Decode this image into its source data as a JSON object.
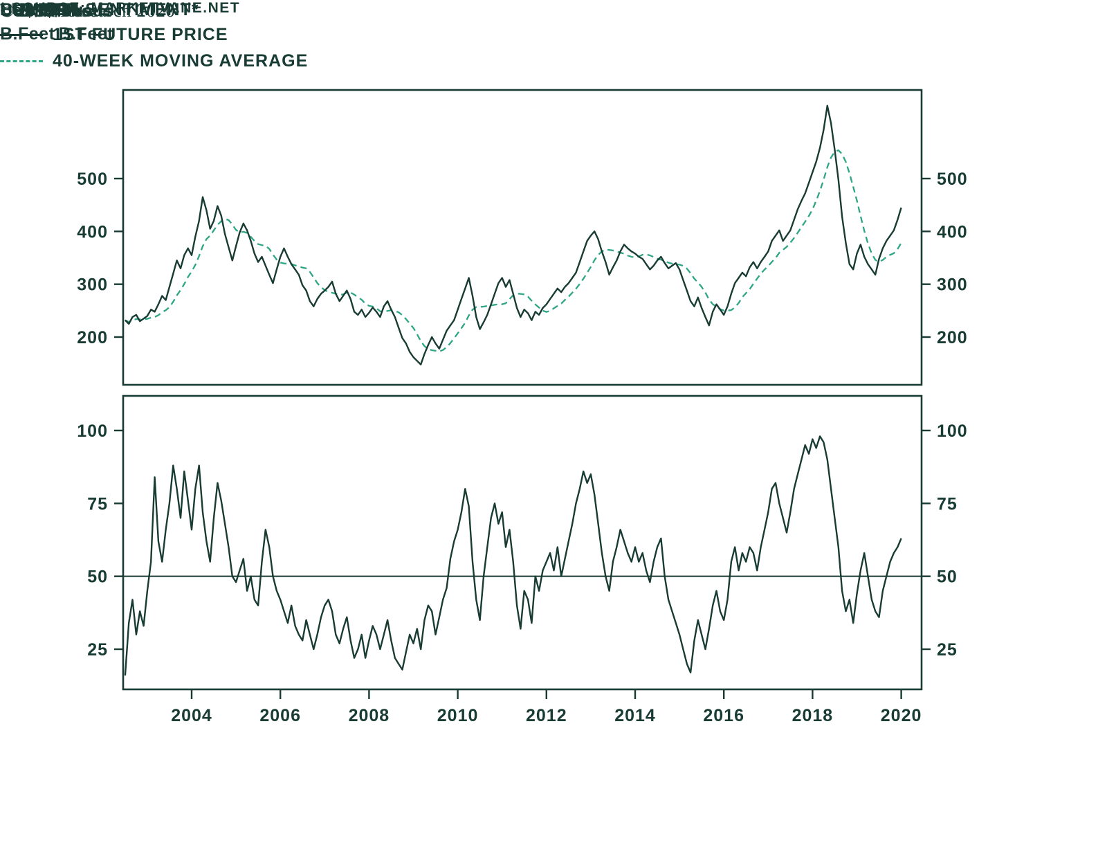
{
  "colors": {
    "line_dark": "#183B33",
    "ma_green": "#2EA585",
    "background": "#ffffff"
  },
  "axis_units": {
    "line1": "US$/Thous",
    "line2": "B.Feet"
  },
  "legend": {
    "title": "LUMBER:",
    "series1": "1ST FUTURE PRICE",
    "series2": "40-WEEK MOVING AVERAGE"
  },
  "panel2_title": "BULLISH SENTIMENT*",
  "copyright": "© BCα Research 2020",
  "source_note": "* SOURCE: MARKETVANE.NET",
  "chart_data": [
    {
      "type": "line",
      "title": "Lumber: 1st future price with 40-week moving average",
      "ylabel": "US$/Thous B.Feet",
      "xlabel": "",
      "yticks": [
        500,
        400,
        300,
        200
      ],
      "xticks": [
        2004,
        2006,
        2008,
        2010,
        2012,
        2014,
        2016,
        2018,
        2020
      ],
      "x_range": [
        2002.45,
        2020.45
      ],
      "ylim": [
        110,
        667
      ],
      "x_start": 2002.5,
      "x_step_years": 0.0833333,
      "grid": false,
      "legend_position": "top-left",
      "series": [
        {
          "name": "1st Future Price",
          "values": [
            232,
            225,
            238,
            242,
            230,
            235,
            240,
            252,
            248,
            262,
            278,
            270,
            295,
            320,
            345,
            330,
            355,
            368,
            355,
            390,
            420,
            465,
            440,
            405,
            420,
            448,
            430,
            395,
            370,
            345,
            372,
            398,
            415,
            402,
            382,
            358,
            342,
            352,
            335,
            318,
            302,
            328,
            352,
            368,
            352,
            338,
            328,
            318,
            298,
            288,
            268,
            258,
            272,
            282,
            288,
            295,
            305,
            282,
            268,
            278,
            288,
            272,
            248,
            242,
            252,
            238,
            246,
            256,
            248,
            238,
            258,
            268,
            252,
            238,
            218,
            198,
            188,
            172,
            162,
            155,
            148,
            168,
            185,
            200,
            188,
            178,
            195,
            212,
            222,
            232,
            252,
            272,
            292,
            312,
            278,
            238,
            215,
            228,
            242,
            262,
            282,
            302,
            312,
            295,
            308,
            282,
            255,
            238,
            252,
            245,
            232,
            248,
            242,
            255,
            262,
            272,
            282,
            292,
            285,
            295,
            302,
            312,
            322,
            342,
            362,
            382,
            392,
            400,
            385,
            362,
            342,
            318,
            332,
            345,
            362,
            375,
            368,
            362,
            358,
            352,
            348,
            338,
            328,
            335,
            345,
            352,
            340,
            330,
            335,
            340,
            328,
            308,
            288,
            268,
            258,
            275,
            255,
            238,
            222,
            248,
            262,
            252,
            242,
            258,
            282,
            302,
            312,
            322,
            315,
            332,
            342,
            330,
            342,
            352,
            362,
            382,
            392,
            402,
            382,
            392,
            402,
            422,
            442,
            458,
            472,
            492,
            512,
            532,
            558,
            592,
            638,
            605,
            555,
            498,
            428,
            378,
            338,
            328,
            358,
            375,
            352,
            338,
            328,
            318,
            348,
            368,
            382,
            392,
            402,
            422,
            445
          ]
        },
        {
          "name": "40-Week Moving Average",
          "derived_from": "1st Future Price",
          "window_weeks": 40,
          "window_points": 9
        }
      ]
    },
    {
      "type": "line",
      "title": "Bullish Sentiment*",
      "ylabel": "",
      "xlabel": "",
      "yticks": [
        100,
        75,
        50,
        25
      ],
      "xticks": [
        2004,
        2006,
        2008,
        2010,
        2012,
        2014,
        2016,
        2018,
        2020
      ],
      "reference_line": 50,
      "x_range": [
        2002.45,
        2020.45
      ],
      "ylim": [
        11,
        112
      ],
      "x_start": 2002.5,
      "x_step_years": 0.0833333,
      "grid": false,
      "source": "MARKETVANE.NET",
      "series": [
        {
          "name": "Bullish Sentiment",
          "values": [
            16,
            34,
            42,
            30,
            38,
            33,
            45,
            55,
            84,
            62,
            55,
            66,
            75,
            88,
            80,
            70,
            86,
            76,
            66,
            80,
            88,
            72,
            62,
            55,
            70,
            82,
            76,
            68,
            60,
            50,
            48,
            52,
            56,
            45,
            50,
            42,
            40,
            55,
            66,
            60,
            50,
            45,
            42,
            38,
            34,
            40,
            33,
            30,
            28,
            35,
            30,
            25,
            30,
            36,
            40,
            42,
            38,
            30,
            27,
            32,
            36,
            28,
            22,
            25,
            30,
            22,
            28,
            33,
            30,
            25,
            30,
            35,
            28,
            22,
            20,
            18,
            24,
            30,
            27,
            32,
            25,
            35,
            40,
            38,
            30,
            36,
            42,
            46,
            56,
            62,
            66,
            72,
            80,
            74,
            55,
            42,
            35,
            50,
            60,
            70,
            75,
            68,
            72,
            60,
            66,
            55,
            40,
            32,
            45,
            42,
            34,
            50,
            45,
            52,
            55,
            58,
            52,
            60,
            50,
            56,
            62,
            68,
            75,
            80,
            86,
            82,
            85,
            78,
            68,
            58,
            50,
            45,
            55,
            60,
            66,
            62,
            58,
            55,
            60,
            55,
            58,
            52,
            48,
            55,
            60,
            63,
            50,
            42,
            38,
            34,
            30,
            25,
            20,
            17,
            28,
            35,
            30,
            25,
            32,
            40,
            45,
            38,
            35,
            42,
            55,
            60,
            52,
            58,
            55,
            60,
            58,
            52,
            60,
            66,
            72,
            80,
            82,
            75,
            70,
            65,
            72,
            80,
            85,
            90,
            95,
            92,
            97,
            94,
            98,
            96,
            90,
            80,
            70,
            60,
            45,
            38,
            42,
            34,
            44,
            52,
            58,
            50,
            42,
            38,
            36,
            45,
            50,
            55,
            58,
            60,
            63
          ]
        }
      ]
    }
  ]
}
